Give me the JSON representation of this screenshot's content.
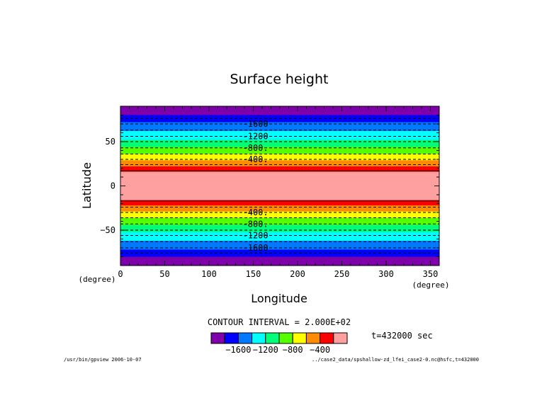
{
  "chart_data": {
    "type": "heatmap",
    "title": "Surface height",
    "xlabel": "Longitude",
    "ylabel": "Latitude",
    "x_unit": "(degree)",
    "y_unit": "(degree)",
    "xlim": [
      0,
      360
    ],
    "ylim": [
      -90,
      90
    ],
    "x_ticks": [
      0,
      50,
      100,
      150,
      200,
      250,
      300,
      350
    ],
    "y_ticks": [
      -50,
      0,
      50
    ],
    "y_tick_labels": [
      "−50",
      "0",
      "50"
    ],
    "bands": [
      {
        "lat_from": 80,
        "lat_to": 90,
        "color": "#7f00aa"
      },
      {
        "lat_from": 72,
        "lat_to": 80,
        "color": "#0000ff"
      },
      {
        "lat_from": 62,
        "lat_to": 72,
        "color": "#0078ff"
      },
      {
        "lat_from": 52,
        "lat_to": 62,
        "color": "#00ffff"
      },
      {
        "lat_from": 44,
        "lat_to": 52,
        "color": "#00ff78"
      },
      {
        "lat_from": 36,
        "lat_to": 44,
        "color": "#55ff00"
      },
      {
        "lat_from": 29,
        "lat_to": 36,
        "color": "#ffff00"
      },
      {
        "lat_from": 22,
        "lat_to": 29,
        "color": "#ff8c00"
      },
      {
        "lat_from": 16,
        "lat_to": 22,
        "color": "#ff0000"
      },
      {
        "lat_from": -16,
        "lat_to": 16,
        "color": "#ffa0a0"
      },
      {
        "lat_from": -22,
        "lat_to": -16,
        "color": "#ff0000"
      },
      {
        "lat_from": -29,
        "lat_to": -22,
        "color": "#ff8c00"
      },
      {
        "lat_from": -36,
        "lat_to": -29,
        "color": "#ffff00"
      },
      {
        "lat_from": -44,
        "lat_to": -36,
        "color": "#55ff00"
      },
      {
        "lat_from": -52,
        "lat_to": -44,
        "color": "#00ff78"
      },
      {
        "lat_from": -62,
        "lat_to": -52,
        "color": "#00ffff"
      },
      {
        "lat_from": -72,
        "lat_to": -62,
        "color": "#0078ff"
      },
      {
        "lat_from": -80,
        "lat_to": -72,
        "color": "#0000ff"
      },
      {
        "lat_from": -90,
        "lat_to": -80,
        "color": "#7f00aa"
      }
    ],
    "contour_lines": [
      {
        "lat": 76,
        "solid": false
      },
      {
        "lat": 70,
        "solid": false
      },
      {
        "lat": 63,
        "solid": false
      },
      {
        "lat": 56,
        "solid": false
      },
      {
        "lat": 50,
        "solid": false
      },
      {
        "lat": 43,
        "solid": false
      },
      {
        "lat": 36,
        "solid": false
      },
      {
        "lat": 30,
        "solid": false
      },
      {
        "lat": 24,
        "solid": false
      },
      {
        "lat": 17,
        "solid": true
      },
      {
        "lat": -17,
        "solid": true
      },
      {
        "lat": -24,
        "solid": false
      },
      {
        "lat": -30,
        "solid": false
      },
      {
        "lat": -36,
        "solid": false
      },
      {
        "lat": -43,
        "solid": false
      },
      {
        "lat": -50,
        "solid": false
      },
      {
        "lat": -56,
        "solid": false
      },
      {
        "lat": -63,
        "solid": false
      },
      {
        "lat": -70,
        "solid": false
      },
      {
        "lat": -76,
        "solid": false
      }
    ],
    "contour_labels": [
      {
        "text": "-1600",
        "lat": 70
      },
      {
        "text": "-1200",
        "lat": 56
      },
      {
        "text": "-800.",
        "lat": 43
      },
      {
        "text": "-400.",
        "lat": 30
      },
      {
        "text": "-400.",
        "lat": -30
      },
      {
        "text": "-800.",
        "lat": -43
      },
      {
        "text": "-1200",
        "lat": -56
      },
      {
        "text": "-1600",
        "lat": -70
      }
    ],
    "contour_label_lon": 138,
    "legend": {
      "colors": [
        "#7f00aa",
        "#0000ff",
        "#0078ff",
        "#00ffff",
        "#00ff78",
        "#55ff00",
        "#ffff00",
        "#ff8c00",
        "#ff0000",
        "#ffa0a0"
      ],
      "tick_labels": [
        "−1600",
        "−1200",
        "−800",
        "−400"
      ]
    }
  },
  "contour_interval": "CONTOUR INTERVAL = 2.000E+02",
  "time_label": "t=432000 sec",
  "footer_left": "/usr/bin/gpview  2006-10-07",
  "footer_right": "../case2_data/spshallow-zd_lfei_case2-0.nc@hsfc,t=432000"
}
